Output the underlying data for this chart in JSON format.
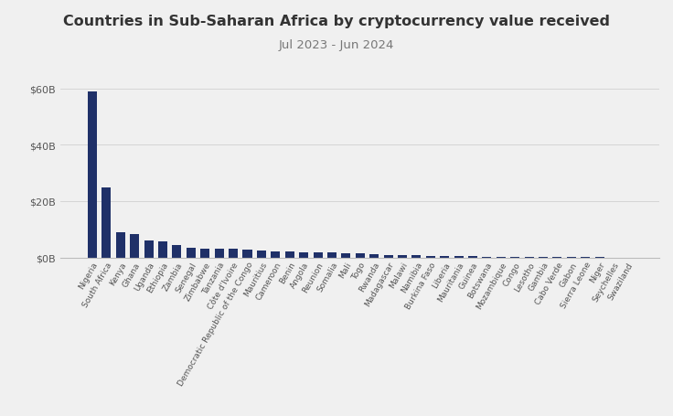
{
  "title": "Countries in Sub-Saharan Africa by cryptocurrency value received",
  "subtitle": "Jul 2023 - Jun 2024",
  "bar_color": "#1f3068",
  "background_color": "#f0f0f0",
  "ytick_labels": [
    "$0B",
    "$20B",
    "$40B",
    "$60B"
  ],
  "ytick_values": [
    0,
    20,
    40,
    60
  ],
  "ylim": [
    0,
    65
  ],
  "categories": [
    "Nigeria",
    "South Africa",
    "Kenya",
    "Ghana",
    "Uganda",
    "Ethiopia",
    "Zambia",
    "Senegal",
    "Zimbabwe",
    "Tanzania",
    "Côte d'Ivoire",
    "Democratic Republic of the Congo",
    "Mauritius",
    "Cameroon",
    "Benin",
    "Angola",
    "Reunion",
    "Somalia",
    "Mali",
    "Togo",
    "Rwanda",
    "Madagascar",
    "Malawi",
    "Namibia",
    "Burkina Faso",
    "Liberia",
    "Mauritania",
    "Guinea",
    "Botswana",
    "Mozambique",
    "Congo",
    "Lesotho",
    "Gambia",
    "Cabo Verde",
    "Gabon",
    "Sierra Leone",
    "Niger",
    "Seychelles",
    "Swaziland"
  ],
  "values": [
    59,
    25,
    9,
    8.2,
    6.2,
    5.8,
    4.5,
    3.5,
    3.2,
    3.1,
    3.0,
    2.8,
    2.5,
    2.3,
    2.1,
    2.0,
    1.9,
    1.8,
    1.6,
    1.5,
    1.2,
    1.0,
    0.85,
    0.75,
    0.65,
    0.55,
    0.48,
    0.42,
    0.38,
    0.32,
    0.27,
    0.22,
    0.19,
    0.16,
    0.13,
    0.11,
    0.09,
    0.07,
    0.05
  ],
  "title_fontsize": 11.5,
  "subtitle_fontsize": 9.5,
  "tick_fontsize": 8,
  "xtick_fontsize": 6.5,
  "grid_color": "#d0d0d0",
  "spine_color": "#bbbbbb",
  "text_color": "#333333",
  "subtitle_color": "#777777",
  "ytick_color": "#555555",
  "xtick_color": "#555555"
}
